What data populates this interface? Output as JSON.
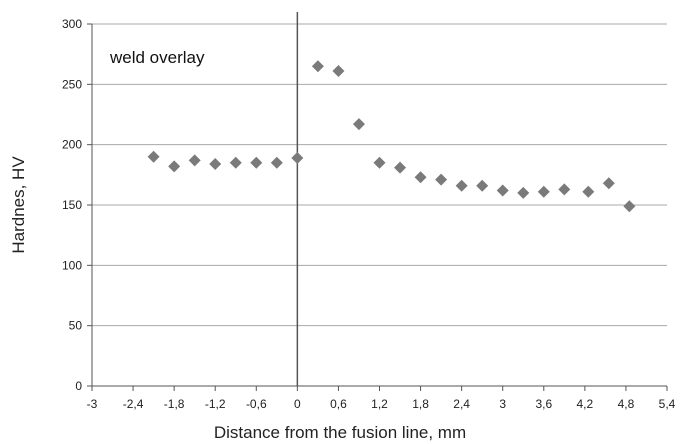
{
  "chart_data": {
    "type": "scatter",
    "title": "",
    "xlabel": "Distance from the fusion line, mm",
    "ylabel": "Hardnes, HV",
    "annotation": "weld overlay",
    "xlim": [
      -3,
      5.4
    ],
    "ylim": [
      0,
      300
    ],
    "x_ticks": [
      -3,
      -2.4,
      -1.8,
      -1.2,
      -0.6,
      0,
      0.6,
      1.2,
      1.8,
      2.4,
      3,
      3.6,
      4.2,
      4.8,
      5.4
    ],
    "x_tick_labels": [
      "-3",
      "-2,4",
      "-1,8",
      "-1,2",
      "-0,6",
      "0",
      "0,6",
      "1,2",
      "1,8",
      "2,4",
      "3",
      "3,6",
      "4,2",
      "4,8",
      "5,4"
    ],
    "y_ticks": [
      0,
      50,
      100,
      150,
      200,
      250,
      300
    ],
    "y_tick_labels": [
      "0",
      "50",
      "100",
      "150",
      "200",
      "250",
      "300"
    ],
    "grid": "horizontal",
    "fusion_line_x": 0,
    "marker": "diamond",
    "marker_color": "#7a7a7a",
    "series": [
      {
        "x": [
          -2.1,
          -1.8,
          -1.5,
          -1.2,
          -0.9,
          -0.6,
          -0.3,
          0,
          0.3,
          0.6,
          0.9,
          1.2,
          1.5,
          1.8,
          2.1,
          2.4,
          2.7,
          3.0,
          3.3,
          3.6,
          3.9,
          4.25,
          4.55,
          4.85
        ],
        "y": [
          190,
          182,
          187,
          184,
          185,
          185,
          185,
          189,
          265,
          261,
          217,
          185,
          181,
          173,
          171,
          166,
          166,
          162,
          160,
          161,
          163,
          161,
          168,
          149
        ]
      }
    ]
  }
}
